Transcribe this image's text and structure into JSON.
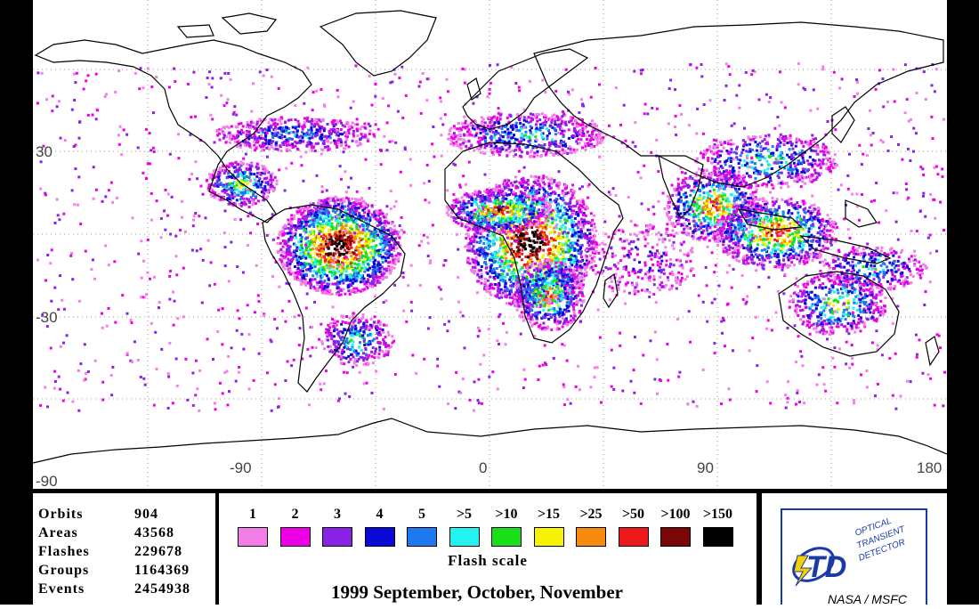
{
  "map": {
    "longitude_labels": [
      "-90",
      "0",
      "90",
      "180"
    ],
    "latitude_labels": [
      "30",
      "-30",
      "-90"
    ]
  },
  "stats": {
    "rows": [
      {
        "label": "Orbits",
        "value": "904"
      },
      {
        "label": "Areas",
        "value": "43568"
      },
      {
        "label": "Flashes",
        "value": "229678"
      },
      {
        "label": "Groups",
        "value": "1164369"
      },
      {
        "label": "Events",
        "value": "2454938"
      }
    ]
  },
  "flash_scale": {
    "caption": "Flash scale",
    "bins": [
      {
        "label": "1",
        "color": "#f47ee8"
      },
      {
        "label": "2",
        "color": "#ee00e6"
      },
      {
        "label": "3",
        "color": "#8a22e6"
      },
      {
        "label": "4",
        "color": "#0a0ad8"
      },
      {
        "label": "5",
        "color": "#1e78f0"
      },
      {
        "label": ">5",
        "color": "#22f2f2"
      },
      {
        "label": ">10",
        "color": "#18e018"
      },
      {
        "label": ">15",
        "color": "#f6f200"
      },
      {
        "label": ">25",
        "color": "#f88a10"
      },
      {
        "label": ">50",
        "color": "#ee1a1a"
      },
      {
        "label": ">100",
        "color": "#7a0606"
      },
      {
        "label": ">150",
        "color": "#000000"
      }
    ]
  },
  "season_title": "1999 September, October, November",
  "logo": {
    "line1": "OPTICAL",
    "line2": "TRANSIENT",
    "line3": "DETECTOR",
    "org": "NASA / MSFC",
    "mark": "TD"
  },
  "colors": {
    "logo_blue": "#1a3aa8",
    "frame": "#000000"
  }
}
